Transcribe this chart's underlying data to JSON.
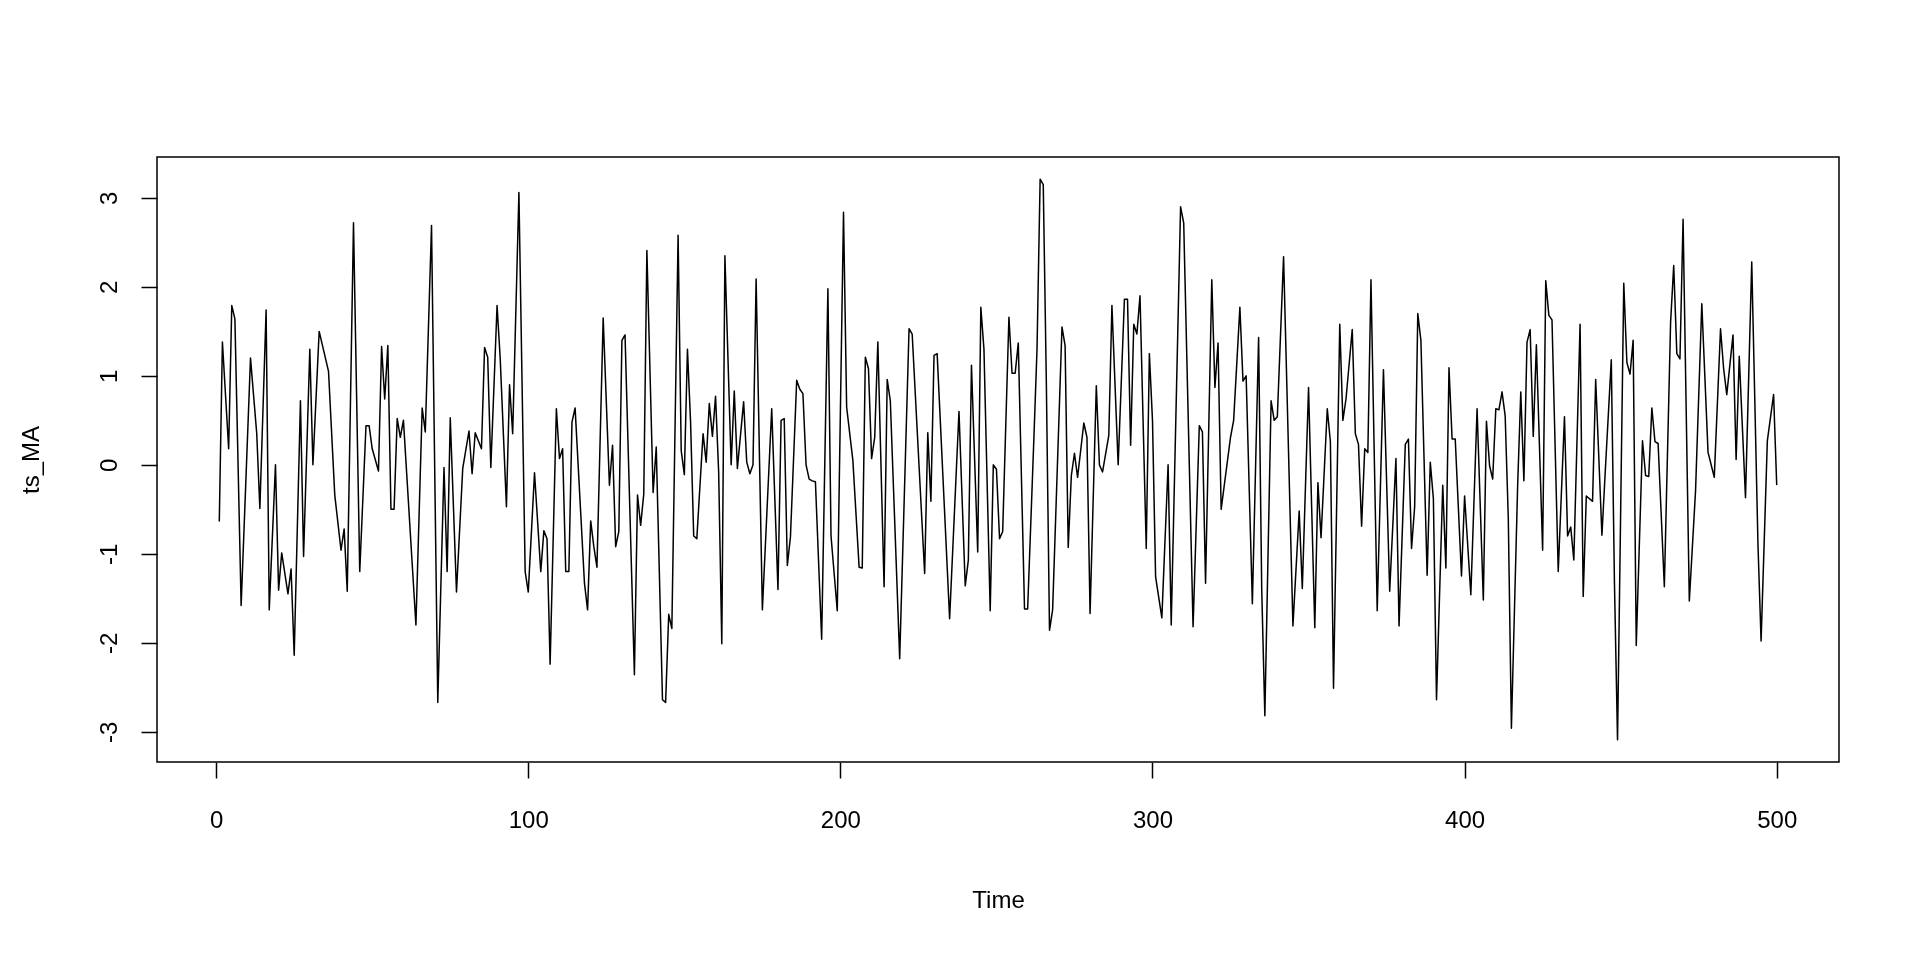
{
  "chart_data": {
    "type": "line",
    "xlabel": "Time",
    "ylabel": "ts_MA",
    "x": [
      1,
      2,
      4,
      5,
      6,
      8,
      11,
      13,
      14,
      16,
      17,
      19,
      20,
      21,
      23,
      24,
      25,
      27,
      28,
      30,
      31,
      33,
      36,
      38,
      40,
      41,
      42,
      44,
      46,
      48,
      49,
      50,
      52,
      53,
      54,
      55,
      56,
      57,
      58,
      59,
      60,
      64,
      66,
      67,
      69,
      71,
      73,
      74,
      75,
      77,
      79,
      81,
      82,
      83,
      85,
      86,
      87,
      88,
      90,
      91,
      93,
      94,
      95,
      97,
      99,
      100,
      102,
      104,
      105,
      106,
      107,
      109,
      110,
      111,
      112,
      113,
      114,
      115,
      118,
      119,
      120,
      121,
      122,
      124,
      126,
      127,
      128,
      129,
      130,
      131,
      134,
      135,
      136,
      137,
      138,
      140,
      141,
      143,
      144,
      145,
      146,
      148,
      149,
      150,
      151,
      152,
      153,
      154,
      156,
      157,
      158,
      159,
      160,
      161,
      162,
      163,
      165,
      166,
      167,
      169,
      170,
      171,
      172,
      173,
      175,
      178,
      180,
      181,
      182,
      183,
      184,
      186,
      187,
      188,
      189,
      190,
      191,
      192,
      194,
      196,
      197,
      199,
      201,
      202,
      204,
      206,
      207,
      208,
      209,
      210,
      211,
      212,
      214,
      215,
      216,
      219,
      222,
      223,
      227,
      228,
      229,
      230,
      231,
      235,
      238,
      240,
      241,
      242,
      244,
      245,
      246,
      248,
      249,
      250,
      251,
      252,
      254,
      255,
      256,
      257,
      259,
      260,
      262,
      263,
      264,
      265,
      266,
      267,
      268,
      271,
      272,
      273,
      274,
      275,
      276,
      278,
      279,
      280,
      282,
      283,
      284,
      286,
      287,
      289,
      291,
      292,
      293,
      294,
      295,
      296,
      298,
      299,
      300,
      301,
      303,
      305,
      306,
      309,
      310,
      313,
      315,
      316,
      317,
      319,
      320,
      321,
      322,
      325,
      326,
      328,
      329,
      330,
      332,
      334,
      335,
      336,
      338,
      339,
      340,
      342,
      345,
      347,
      348,
      350,
      352,
      353,
      354,
      356,
      357,
      358,
      360,
      361,
      362,
      364,
      365,
      366,
      367,
      368,
      369,
      370,
      372,
      374,
      376,
      378,
      379,
      381,
      382,
      383,
      384,
      385,
      386,
      388,
      389,
      390,
      391,
      393,
      394,
      395,
      396,
      397,
      399,
      400,
      402,
      404,
      406,
      407,
      408,
      409,
      410,
      411,
      412,
      413,
      414,
      415,
      417,
      418,
      419,
      420,
      421,
      422,
      423,
      425,
      426,
      427,
      428,
      430,
      432,
      433,
      434,
      435,
      437,
      438,
      439,
      441,
      442,
      444,
      445,
      447,
      448,
      449,
      451,
      452,
      453,
      454,
      455,
      457,
      458,
      459,
      460,
      461,
      462,
      464,
      466,
      467,
      468,
      469,
      470,
      472,
      474,
      476,
      478,
      480,
      482,
      483,
      484,
      486,
      487,
      488,
      490,
      492,
      493,
      494,
      495,
      497,
      499,
      500
    ],
    "series": [
      {
        "color": "#000000",
        "values": [
          -0.63,
          1.38,
          0.18,
          1.79,
          1.64,
          -1.58,
          1.2,
          0.35,
          -0.49,
          1.74,
          -1.63,
          0.0,
          -1.41,
          -0.99,
          -1.45,
          -1.17,
          -2.14,
          0.72,
          -1.03,
          1.3,
          0.0,
          1.5,
          1.05,
          -0.34,
          -0.96,
          -0.72,
          -1.42,
          2.72,
          -1.2,
          0.44,
          0.44,
          0.18,
          -0.07,
          1.33,
          0.74,
          1.34,
          -0.5,
          -0.5,
          0.52,
          0.31,
          0.5,
          -1.8,
          0.64,
          0.37,
          2.69,
          -2.67,
          -0.03,
          -1.2,
          0.53,
          -1.43,
          -0.04,
          0.38,
          -0.1,
          0.36,
          0.18,
          1.32,
          1.21,
          -0.03,
          1.79,
          1.2,
          -0.47,
          0.9,
          0.35,
          3.06,
          -1.2,
          -1.43,
          -0.09,
          -1.2,
          -0.74,
          -0.83,
          -2.24,
          0.63,
          0.07,
          0.18,
          -1.2,
          -1.2,
          0.48,
          0.64,
          -1.33,
          -1.63,
          -0.63,
          -0.92,
          -1.15,
          1.65,
          -0.23,
          0.22,
          -0.92,
          -0.75,
          1.4,
          1.46,
          -2.36,
          -0.34,
          -0.68,
          -0.33,
          2.41,
          -0.31,
          0.2,
          -2.64,
          -2.67,
          -1.68,
          -1.84,
          2.58,
          0.16,
          -0.11,
          1.3,
          0.48,
          -0.8,
          -0.83,
          0.35,
          0.03,
          0.69,
          0.32,
          0.77,
          -0.08,
          -2.01,
          2.35,
          0.0,
          0.83,
          -0.04,
          0.71,
          0.03,
          -0.1,
          0.0,
          2.09,
          -1.63,
          0.63,
          -1.4,
          0.5,
          0.52,
          -1.13,
          -0.81,
          0.95,
          0.85,
          0.8,
          0.0,
          -0.16,
          -0.18,
          -0.19,
          -1.96,
          1.98,
          -0.8,
          -1.64,
          2.84,
          0.65,
          0.05,
          -1.15,
          -1.16,
          1.21,
          1.08,
          0.07,
          0.31,
          1.38,
          -1.37,
          0.96,
          0.72,
          -2.18,
          1.53,
          1.47,
          -1.22,
          0.36,
          -0.41,
          1.23,
          1.25,
          -1.73,
          0.6,
          -1.36,
          -1.07,
          1.12,
          -0.98,
          1.77,
          1.3,
          -1.64,
          0.0,
          -0.05,
          -0.83,
          -0.75,
          1.66,
          1.03,
          1.03,
          1.37,
          -1.62,
          -1.62,
          0.3,
          1.3,
          3.21,
          3.15,
          0.9,
          -1.86,
          -1.63,
          1.55,
          1.34,
          -0.93,
          -0.12,
          0.13,
          -0.14,
          0.47,
          0.31,
          -1.67,
          0.89,
          0.0,
          -0.08,
          0.33,
          1.79,
          0.0,
          1.86,
          1.86,
          0.22,
          1.58,
          1.47,
          1.9,
          -0.94,
          1.25,
          0.5,
          -1.26,
          -1.72,
          0.0,
          -1.8,
          2.9,
          2.72,
          -1.82,
          0.44,
          0.37,
          -1.33,
          2.08,
          0.87,
          1.37,
          -0.5,
          0.31,
          0.5,
          1.77,
          0.94,
          1.0,
          -1.56,
          1.43,
          -1.4,
          -2.82,
          0.72,
          0.5,
          0.54,
          2.34,
          -1.81,
          -0.52,
          -1.39,
          0.87,
          -1.83,
          -0.2,
          -0.82,
          0.63,
          0.26,
          -2.51,
          1.58,
          0.5,
          0.74,
          1.52,
          0.35,
          0.23,
          -0.69,
          0.18,
          0.14,
          2.08,
          -1.64,
          1.07,
          -1.42,
          0.07,
          -1.81,
          0.23,
          0.29,
          -0.94,
          -0.47,
          1.7,
          1.4,
          -1.24,
          0.03,
          -0.38,
          -2.64,
          -0.23,
          -1.16,
          1.09,
          0.29,
          0.29,
          -1.25,
          -0.35,
          -1.46,
          0.63,
          -1.52,
          0.49,
          -0.01,
          -0.16,
          0.63,
          0.62,
          0.82,
          0.55,
          -0.6,
          -2.96,
          -0.23,
          0.82,
          -0.18,
          1.38,
          1.52,
          0.32,
          1.35,
          -0.96,
          2.07,
          1.68,
          1.63,
          -1.2,
          0.54,
          -0.8,
          -0.7,
          -1.07,
          1.58,
          -1.48,
          -0.35,
          -0.41,
          0.96,
          -0.79,
          -0.12,
          1.18,
          -1.3,
          -3.09,
          2.04,
          1.15,
          1.02,
          1.4,
          -2.03,
          0.27,
          -0.12,
          -0.13,
          0.64,
          0.26,
          0.24,
          -1.37,
          1.6,
          2.24,
          1.25,
          1.19,
          2.76,
          -1.53,
          -0.29,
          1.81,
          0.14,
          -0.14,
          1.53,
          1.08,
          0.79,
          1.46,
          0.06,
          1.22,
          -0.37,
          2.28,
          0.7,
          -0.9,
          -1.98,
          0.27,
          0.79,
          -0.22
        ]
      }
    ],
    "xlim": [
      -18.96,
      519.96
    ],
    "ylim": [
      -3.34,
      3.46
    ],
    "xticks": [
      0,
      100,
      200,
      300,
      400,
      500
    ],
    "yticks": [
      -3,
      -2,
      -1,
      0,
      1,
      2,
      3
    ],
    "grid": false,
    "legend": false,
    "marker": "none",
    "line_style": "solid"
  }
}
